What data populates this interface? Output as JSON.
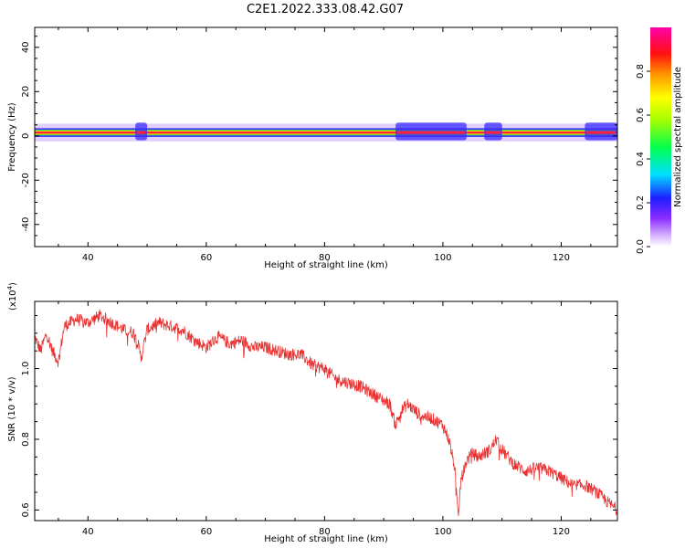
{
  "figure": {
    "title": "C2E1.2022.333.08.42.G07"
  },
  "chart_data": [
    {
      "type": "heatmap",
      "xlabel": "Height of straight line (km)",
      "ylabel": "Frequency (Hz)",
      "xlim": [
        31,
        129.5
      ],
      "ylim": [
        -50,
        49
      ],
      "xticks": [
        40,
        60,
        80,
        100,
        120
      ],
      "yticks": [
        -40,
        -20,
        0,
        20,
        40
      ],
      "colorbar": {
        "label": "Normalized spectral amplitude",
        "range": [
          0,
          1
        ],
        "ticks": [
          0.0,
          0.2,
          0.4,
          0.6,
          0.8
        ],
        "colormap": "rainbow (white-violet-blue-cyan-green-yellow-orange-red-magenta)"
      },
      "signal": {
        "center_frequency_hz": 1.5,
        "core_halfwidth_hz": 1.0,
        "weak_halo_halfwidth_hz": 4.0,
        "peak_amplitude": 0.85,
        "disturbed_segments_km": [
          [
            48,
            50
          ],
          [
            92,
            104
          ],
          [
            107,
            110
          ],
          [
            124,
            129.5
          ]
        ]
      },
      "colors": {
        "core": "#ff1f3d",
        "inner": "#ffd400",
        "middle": "#22e048",
        "halo": "#3a2bff",
        "weak": "#c9a8ff"
      }
    },
    {
      "type": "line",
      "xlabel": "Height of straight line (km)",
      "ylabel": "SNR (10 * v/v)",
      "y_multiplier": "(x10⁴)",
      "y_multiplier_base": "(x10",
      "y_multiplier_exp": "4",
      "y_multiplier_close": ")",
      "xlim": [
        31,
        129.5
      ],
      "ylim": [
        0.57,
        1.19
      ],
      "xticks": [
        40,
        60,
        80,
        100,
        120
      ],
      "yticks": [
        0.6,
        0.8,
        1.0
      ],
      "ytick_labels": [
        "0.6",
        "0.8",
        "1.0"
      ],
      "line_color": "#e83030",
      "series": [
        {
          "x": [
            31,
            32,
            33,
            34,
            35,
            36,
            38,
            40,
            42,
            44,
            46,
            48,
            49,
            50,
            52,
            54,
            56,
            58,
            60,
            62,
            64,
            66,
            68,
            70,
            72,
            74,
            76,
            78,
            80,
            82,
            84,
            86,
            88,
            90,
            91,
            92,
            93,
            94,
            96,
            98,
            100,
            101,
            102,
            102.6,
            103,
            104,
            105,
            106,
            108,
            109,
            110,
            112,
            114,
            116,
            118,
            120,
            122,
            124,
            126,
            128,
            129.5
          ],
          "y": [
            1.09,
            1.05,
            1.1,
            1.05,
            1.02,
            1.12,
            1.14,
            1.13,
            1.15,
            1.13,
            1.11,
            1.1,
            1.03,
            1.11,
            1.13,
            1.12,
            1.11,
            1.08,
            1.06,
            1.09,
            1.07,
            1.08,
            1.06,
            1.06,
            1.05,
            1.04,
            1.04,
            1.01,
            1.0,
            0.97,
            0.96,
            0.95,
            0.93,
            0.91,
            0.9,
            0.84,
            0.88,
            0.9,
            0.87,
            0.86,
            0.84,
            0.8,
            0.72,
            0.57,
            0.68,
            0.74,
            0.76,
            0.75,
            0.77,
            0.8,
            0.77,
            0.73,
            0.71,
            0.72,
            0.71,
            0.69,
            0.67,
            0.67,
            0.65,
            0.62,
            0.6
          ]
        }
      ]
    }
  ]
}
